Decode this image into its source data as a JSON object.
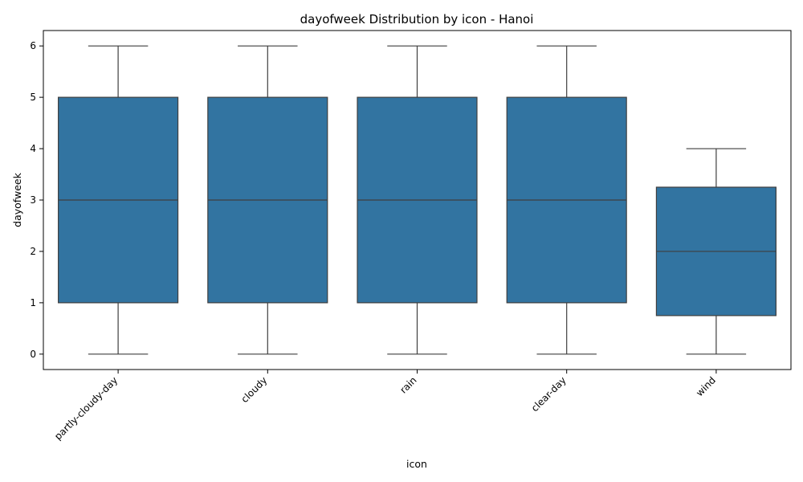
{
  "chart_data": {
    "type": "box",
    "title": "dayofweek Distribution by icon - Hanoi",
    "xlabel": "icon",
    "ylabel": "dayofweek",
    "ylim": [
      -0.3,
      6.3
    ],
    "yticks": [
      0,
      1,
      2,
      3,
      4,
      5,
      6
    ],
    "grid": false,
    "legend": "none",
    "color": "#3274a1",
    "categories": [
      "partly-cloudy-day",
      "cloudy",
      "rain",
      "clear-day",
      "wind"
    ],
    "boxes": [
      {
        "category": "partly-cloudy-day",
        "whisker_low": 0,
        "q1": 1,
        "median": 3,
        "q3": 5,
        "whisker_high": 6
      },
      {
        "category": "cloudy",
        "whisker_low": 0,
        "q1": 1,
        "median": 3,
        "q3": 5,
        "whisker_high": 6
      },
      {
        "category": "rain",
        "whisker_low": 0,
        "q1": 1,
        "median": 3,
        "q3": 5,
        "whisker_high": 6
      },
      {
        "category": "clear-day",
        "whisker_low": 0,
        "q1": 1,
        "median": 3,
        "q3": 5,
        "whisker_high": 6
      },
      {
        "category": "wind",
        "whisker_low": 0,
        "q1": 0.75,
        "median": 2,
        "q3": 3.25,
        "whisker_high": 4
      }
    ]
  }
}
